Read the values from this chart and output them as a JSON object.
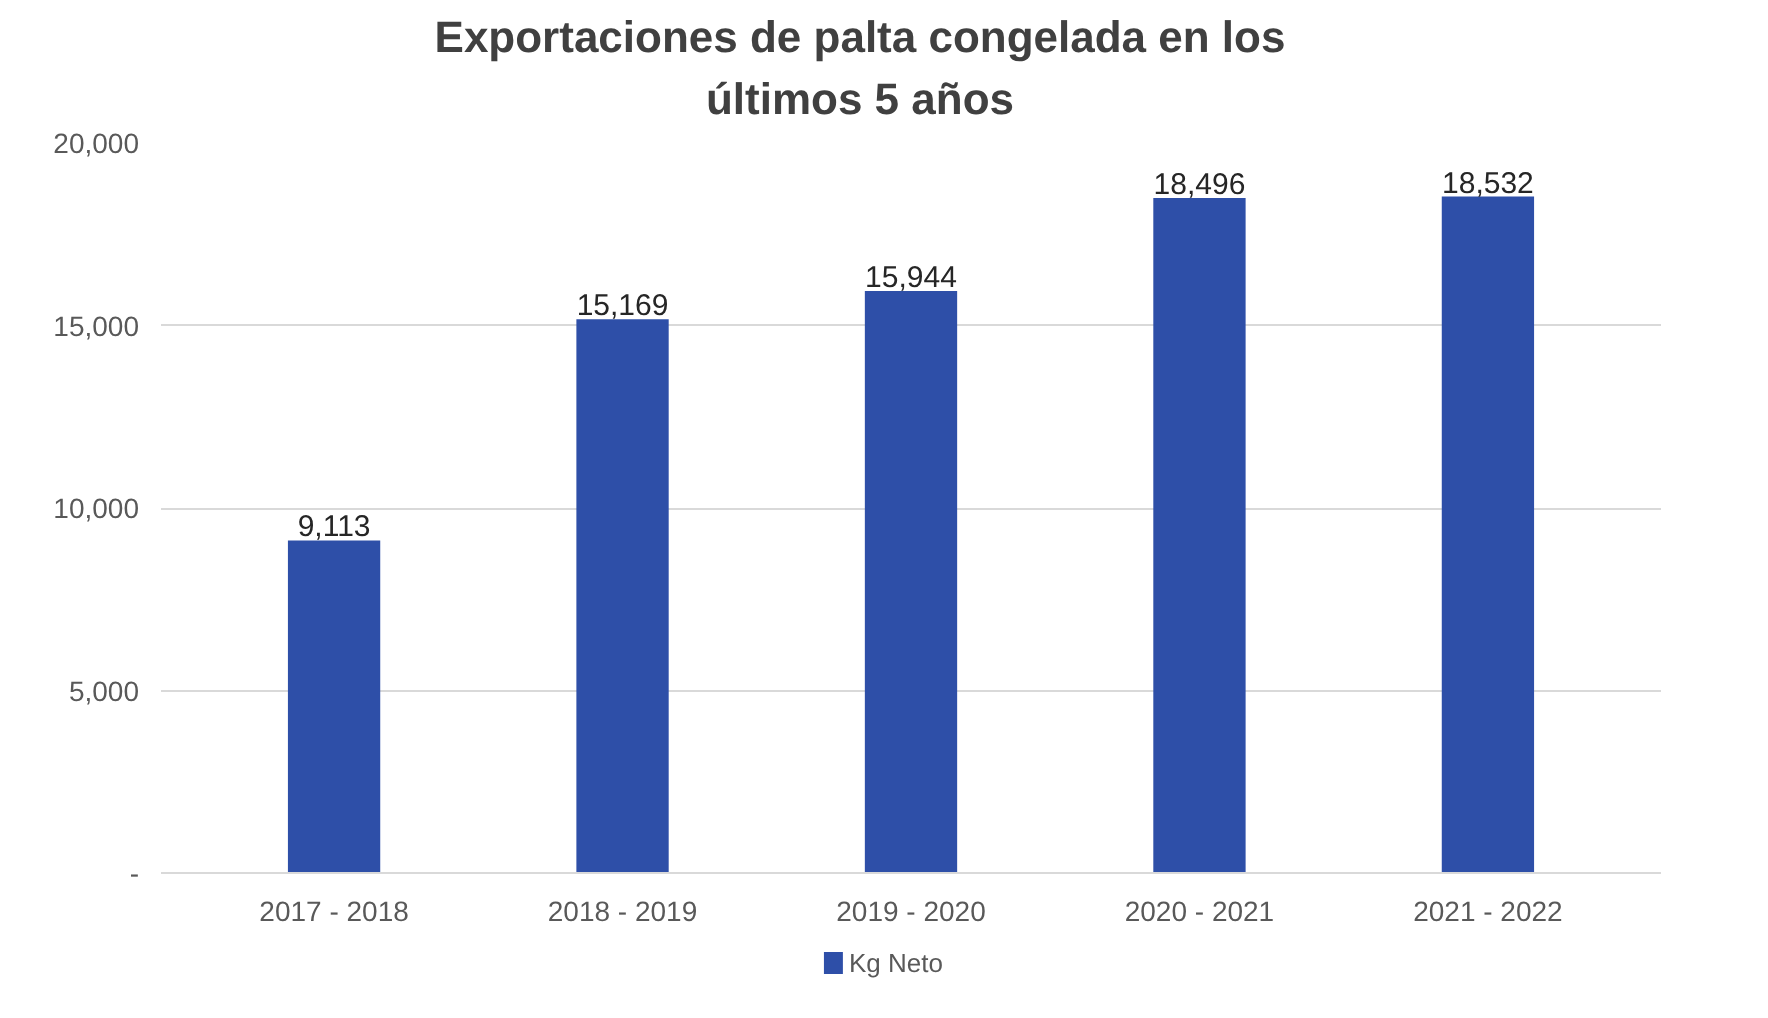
{
  "chart_data": {
    "type": "bar",
    "title": "Exportaciones de palta congelada en los últimos 5 años",
    "categories": [
      "2017 - 2018",
      "2018 - 2019",
      "2019 - 2020",
      "2020 - 2021",
      "2021 - 2022"
    ],
    "series": [
      {
        "name": "Kg Neto",
        "color": "#2e4fa8",
        "values": [
          9113,
          15169,
          15944,
          18496,
          18532
        ],
        "value_labels": [
          "9,113",
          "15,169",
          "15,944",
          "18,496",
          "18,532"
        ]
      }
    ],
    "ylim": [
      0,
      20000
    ],
    "yticks": [
      {
        "value": 0,
        "label": "-"
      },
      {
        "value": 5000,
        "label": "5,000"
      },
      {
        "value": 10000,
        "label": "10,000"
      },
      {
        "value": 15000,
        "label": "15,000"
      },
      {
        "value": 20000,
        "label": "20,000"
      }
    ],
    "grid": "y",
    "legend": "bottom",
    "data_labels": true
  }
}
